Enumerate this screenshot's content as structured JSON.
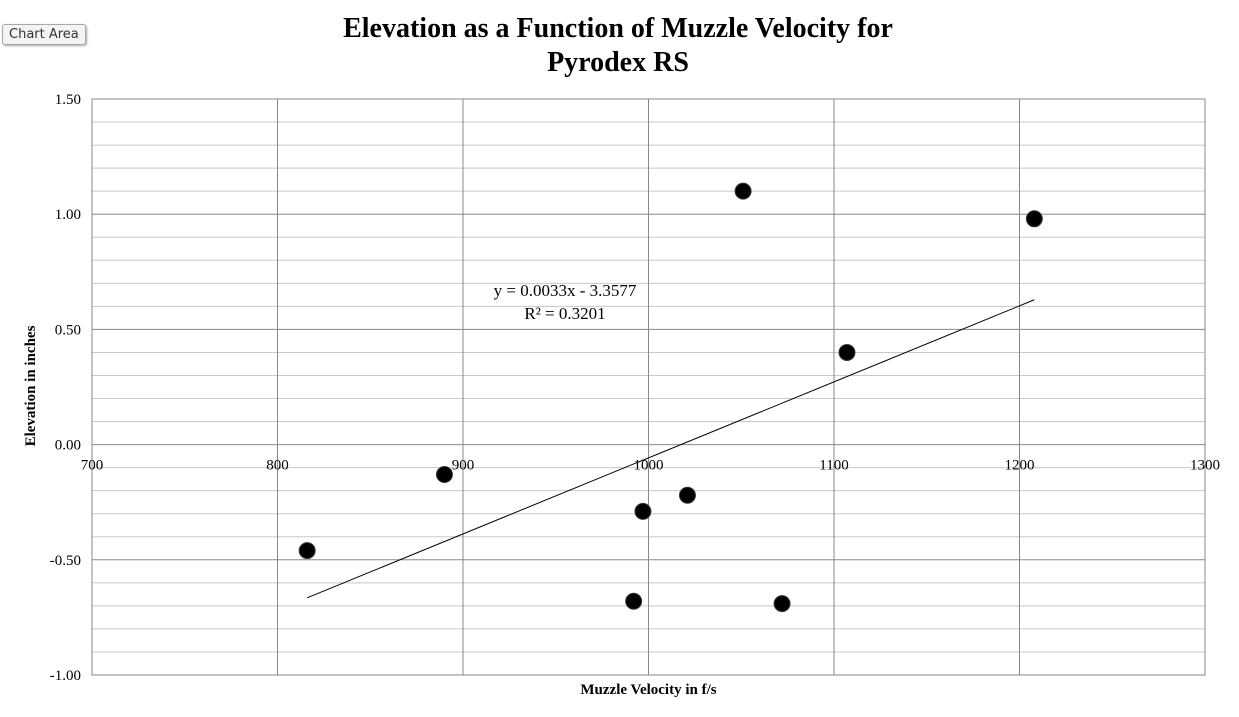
{
  "ui": {
    "chart_area_label": "Chart Area"
  },
  "chart_data": {
    "type": "scatter",
    "title_lines": [
      "Elevation as a Function of Muzzle Velocity for",
      "Pyrodex RS"
    ],
    "xlabel": "Muzzle Velocity in f/s",
    "ylabel": "Elevation in inches",
    "xlim": [
      700,
      1300
    ],
    "ylim": [
      -1.0,
      1.5
    ],
    "x_major_ticks": [
      700,
      800,
      900,
      1000,
      1100,
      1200,
      1300
    ],
    "y_major_ticks": [
      -1.0,
      -0.5,
      0.0,
      0.5,
      1.0,
      1.5
    ],
    "y_minor_step": 0.1,
    "grid": true,
    "legend": "none",
    "points": [
      {
        "x": 816,
        "y": -0.46
      },
      {
        "x": 890,
        "y": -0.13
      },
      {
        "x": 992,
        "y": -0.68
      },
      {
        "x": 997,
        "y": -0.29
      },
      {
        "x": 1021,
        "y": -0.22
      },
      {
        "x": 1051,
        "y": 1.1
      },
      {
        "x": 1072,
        "y": -0.69
      },
      {
        "x": 1107,
        "y": 0.4
      },
      {
        "x": 1208,
        "y": 0.98
      }
    ],
    "trendline": {
      "type": "linear",
      "slope": 0.0033,
      "intercept": -3.3577,
      "x_range": [
        816,
        1208
      ],
      "equation_label": "y = 0.0033x - 3.3577",
      "r2_label": "R² = 0.3201"
    },
    "colors": {
      "point": "#000000",
      "major_grid": "#888888",
      "minor_grid": "#c8c8c8",
      "trendline": "#000000"
    }
  }
}
